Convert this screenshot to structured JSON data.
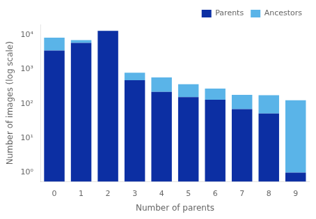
{
  "chart_data": {
    "type": "bar",
    "stacked": true,
    "log": "y",
    "categories": [
      0,
      1,
      2,
      3,
      4,
      5,
      6,
      7,
      8,
      9
    ],
    "series": [
      {
        "name": "Parents",
        "color": "#0c2fa3",
        "values": [
          3500,
          5800,
          13000,
          480,
          220,
          155,
          130,
          70,
          52,
          1
        ]
      },
      {
        "name": "Ancestors",
        "color": "#5ab4e8",
        "values": [
          4800,
          1200,
          200,
          310,
          360,
          215,
          145,
          110,
          125,
          125
        ]
      }
    ],
    "x_label": "Number of parents",
    "y_label": "Number of images (log scale)",
    "ylim": [
      0.55,
      20000
    ],
    "yticks": [
      {
        "value": 1,
        "label": "10⁰"
      },
      {
        "value": 10,
        "label": "10¹"
      },
      {
        "value": 100,
        "label": "10²"
      },
      {
        "value": 1000,
        "label": "10³"
      },
      {
        "value": 10000,
        "label": "10⁴"
      }
    ],
    "grid": false,
    "legend": "upper right"
  }
}
